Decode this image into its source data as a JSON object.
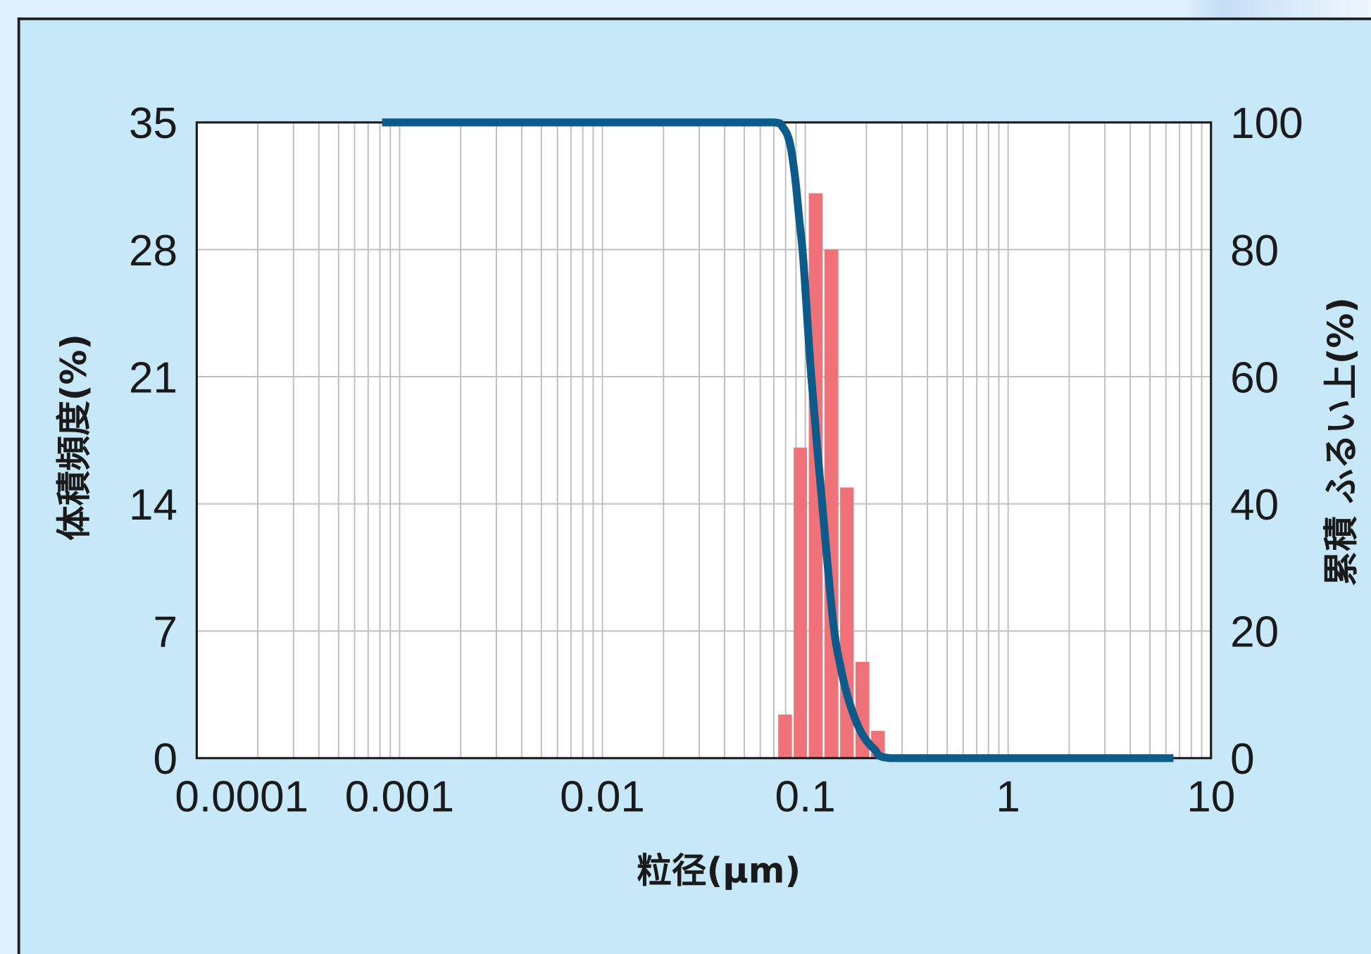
{
  "chart_data": {
    "type": "bar",
    "xlabel": "粒径(μm)",
    "x_scale": "log",
    "xlim": [
      0.0001,
      10
    ],
    "xticks": [
      "0.0001",
      "0.001",
      "0.01",
      "0.1",
      "1",
      "10"
    ],
    "ylabel": "体積頻度(%)",
    "ylim": [
      0,
      35
    ],
    "yticks": [
      "0",
      "7",
      "14",
      "21",
      "28",
      "35"
    ],
    "ylabel_right": "累積 ふるい上(%)",
    "ylim_right": [
      0,
      100
    ],
    "yticks_right": [
      "0",
      "20",
      "40",
      "60",
      "80",
      "100"
    ],
    "grid": true,
    "series": [
      {
        "type": "bar",
        "y_axis": "left",
        "bin_edges": [
          0.0728,
          0.0868,
          0.103,
          0.123,
          0.147,
          0.175,
          0.209,
          0.249
        ],
        "values": [
          2.4,
          17.1,
          31.1,
          28.0,
          14.9,
          5.3,
          1.5
        ],
        "color": "#f07279"
      },
      {
        "type": "line",
        "y_axis": "right",
        "x": [
          0.00082,
          0.07,
          0.0772,
          0.0836,
          0.0888,
          0.0933,
          0.098,
          0.107,
          0.121,
          0.137,
          0.15,
          0.166,
          0.189,
          0.219,
          0.262,
          6.53
        ],
        "y": [
          100,
          100,
          99.3,
          97.0,
          91.7,
          84.9,
          78.0,
          60.1,
          40.2,
          21.6,
          14.0,
          8.5,
          4.0,
          1.4,
          0,
          0
        ],
        "color": "#0c5b8a"
      }
    ]
  },
  "colors": {
    "page_background": "#e0effc",
    "panel_background": "#c6e8f8",
    "panel_border": "#1e1e1e",
    "plot_background": "#ffffff",
    "plot_frame": "#1a1a1a",
    "grid": "#c0c0c0",
    "text": "#1a1a1a"
  }
}
